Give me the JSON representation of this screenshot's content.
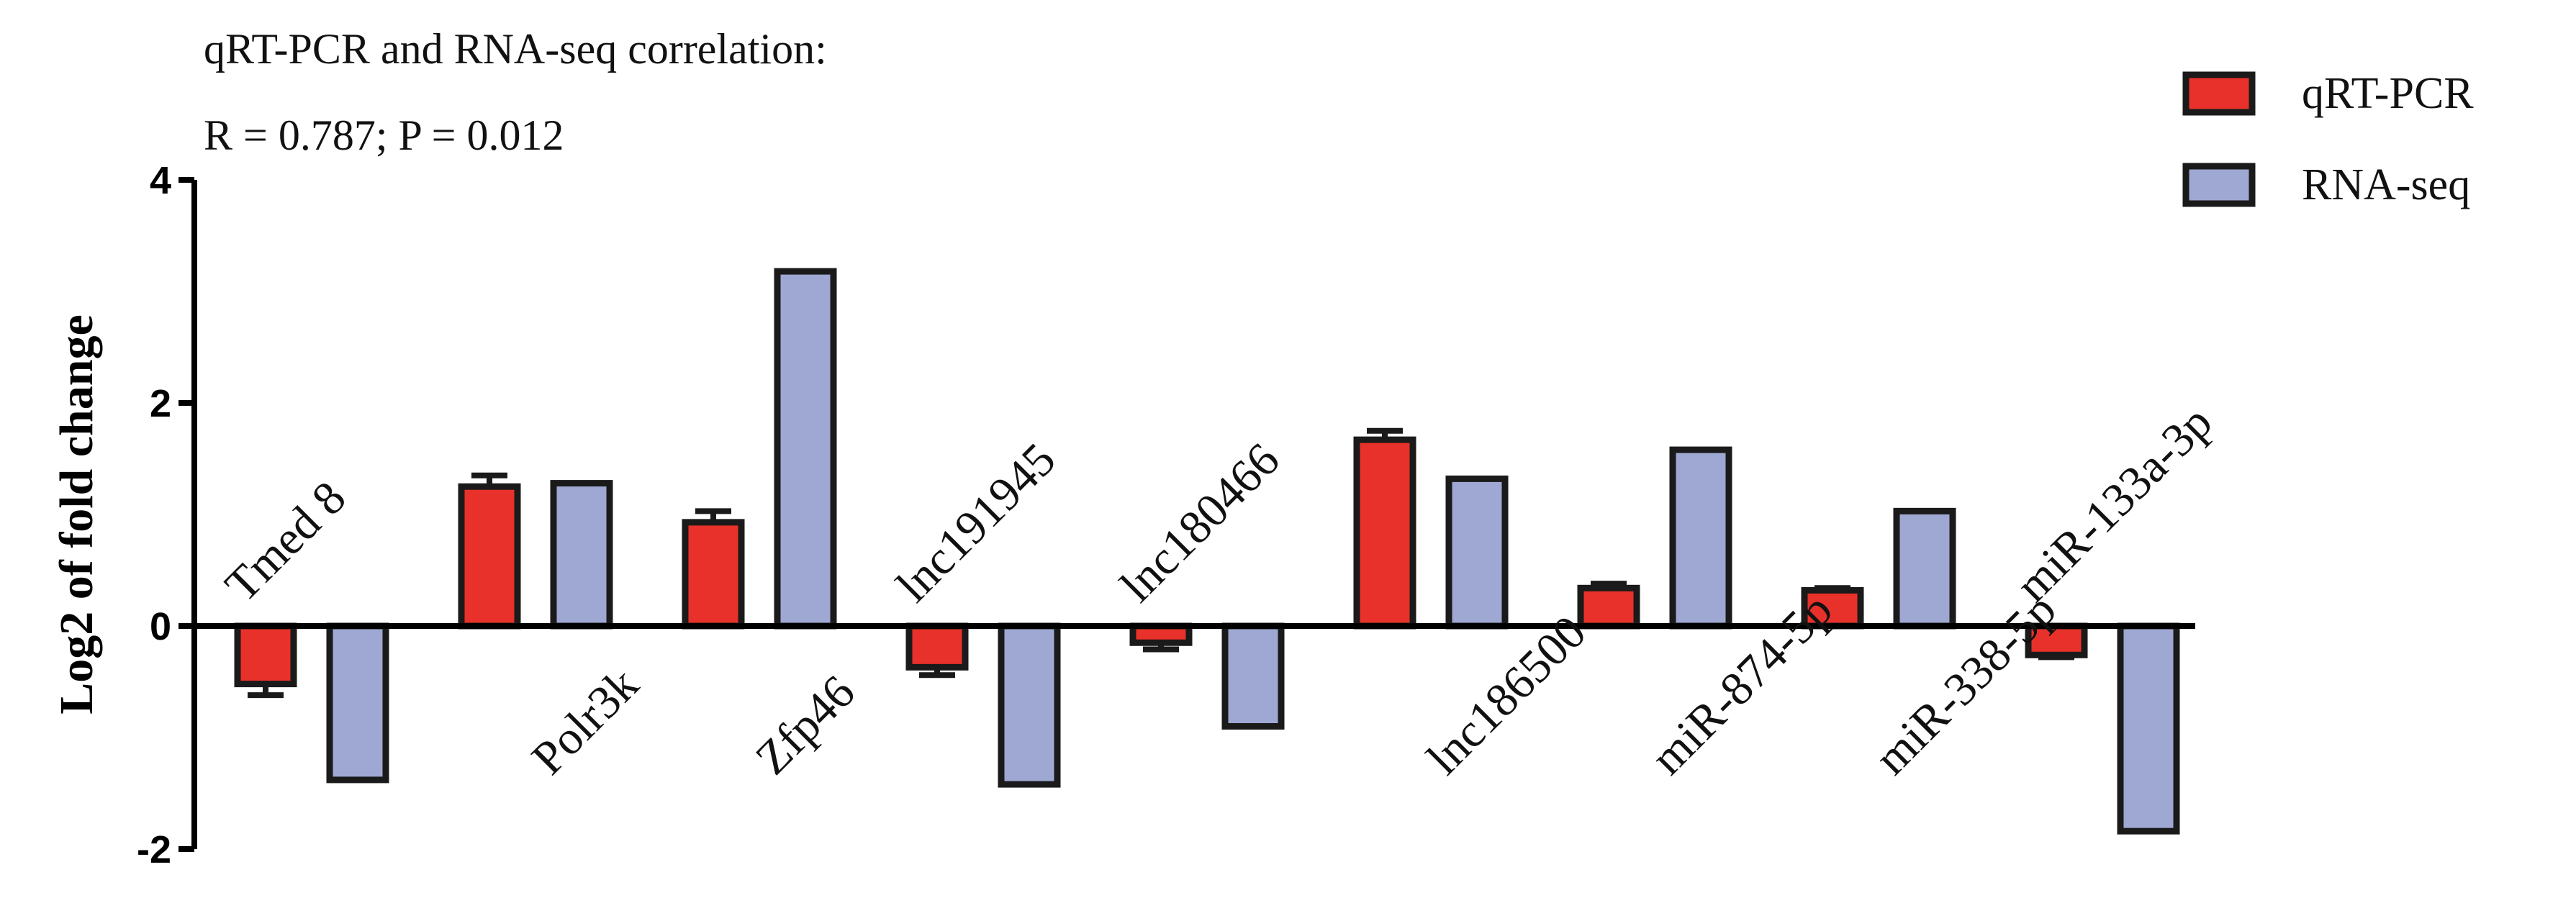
{
  "chart_data": {
    "type": "bar",
    "annotation": {
      "line1": "qRT-PCR and RNA-seq correlation:",
      "line2": "R = 0.787; P = 0.012"
    },
    "ylabel": "Log2 of fold change",
    "xlabel": "",
    "ylim": [
      -2,
      4
    ],
    "yticks": [
      {
        "value": -2,
        "label": "-2"
      },
      {
        "value": 0,
        "label": "0"
      },
      {
        "value": 2,
        "label": "2"
      },
      {
        "value": 4,
        "label": "4"
      }
    ],
    "categories": [
      "Tmed 8",
      "Polr3k",
      "Zfp46",
      "lnc191945",
      "lnc180466",
      "lnc186500",
      "miR-874-5p",
      "miR-338-5p",
      "miR-133a-3p"
    ],
    "label_side": [
      "above",
      "below",
      "below",
      "above",
      "above",
      "below",
      "below",
      "below",
      "above"
    ],
    "series": [
      {
        "name": "qRT-PCR",
        "color": "#e8312a",
        "values": [
          -0.52,
          1.25,
          0.93,
          -0.37,
          -0.15,
          1.67,
          0.34,
          0.32,
          -0.26
        ],
        "errors": [
          0.1,
          0.1,
          0.1,
          0.07,
          0.06,
          0.08,
          0.04,
          0.02,
          0.02
        ]
      },
      {
        "name": "RNA-seq",
        "color": "#9ea8d3",
        "values": [
          -1.38,
          1.28,
          3.18,
          -1.42,
          -0.9,
          1.32,
          1.58,
          1.03,
          -1.84
        ],
        "errors": [
          0,
          0,
          0,
          0,
          0,
          0,
          0,
          0,
          0
        ]
      }
    ],
    "legend": {
      "position": "top-right"
    }
  }
}
